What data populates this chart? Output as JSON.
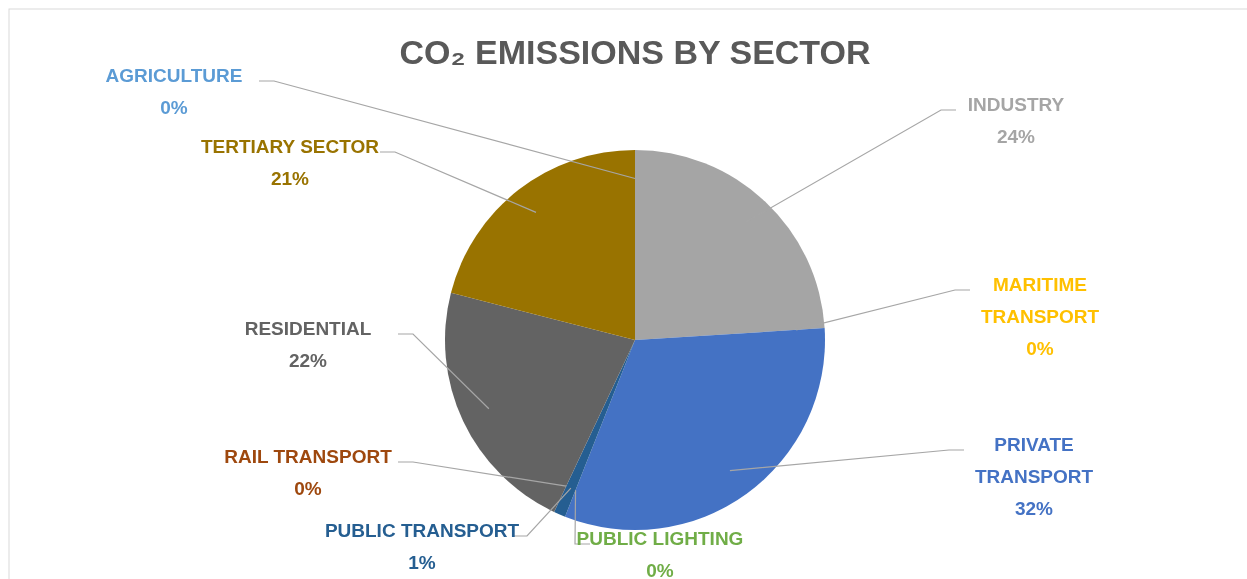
{
  "chart_data": {
    "type": "pie",
    "title": "CO₂ EMISSIONS BY SECTOR",
    "categories": [
      "INDUSTRY",
      "MARITIME TRANSPORT",
      "PRIVATE TRANSPORT",
      "PUBLIC LIGHTING",
      "PUBLIC TRANSPORT",
      "RAIL TRANSPORT",
      "RESIDENTIAL",
      "TERTIARY SECTOR",
      "AGRICULTURE"
    ],
    "values": [
      24,
      0,
      32,
      0,
      1,
      0,
      22,
      21,
      0
    ],
    "value_labels": [
      "24%",
      "0%",
      "32%",
      "0%",
      "1%",
      "0%",
      "22%",
      "21%",
      "0%"
    ],
    "colors": [
      "#a5a5a5",
      "#ffc000",
      "#4472c4",
      "#70ad47",
      "#255e91",
      "#9e480e",
      "#636363",
      "#997300",
      "#5b9bd5"
    ]
  }
}
